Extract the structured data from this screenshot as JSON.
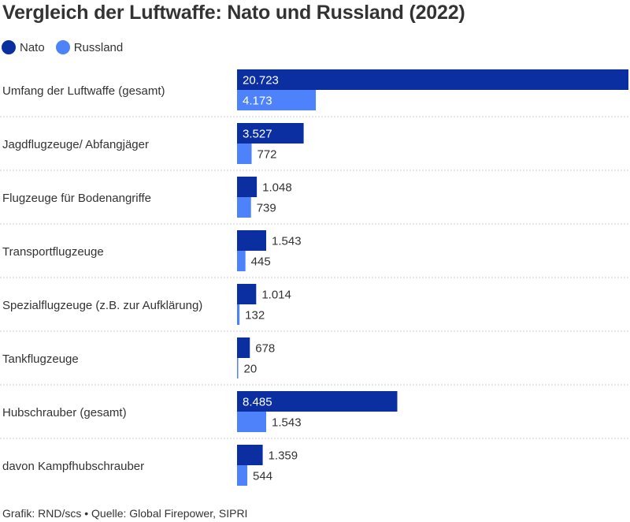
{
  "title": "Vergleich der Luftwaffe: Nato und Russland (2022)",
  "footer": "Grafik: RND/scs • Quelle: Global Firepower, SIPRI",
  "colors": {
    "nato": "#0b2fa0",
    "russland": "#4d82fa",
    "separator": "#cccccc",
    "text": "#333333",
    "label_inside": "#ffffff"
  },
  "legend": [
    {
      "name": "Nato",
      "color": "#0b2fa0"
    },
    {
      "name": "Russland",
      "color": "#4d82fa"
    }
  ],
  "chart_data": {
    "type": "bar",
    "orientation": "horizontal",
    "categories": [
      "Umfang der Luftwaffe (gesamt)",
      "Jagdflugzeuge/ Abfangjäger",
      "Flugzeuge für Bodenangriffe",
      "Transportflugzeuge",
      "Spezialflugzeuge (z.B. zur Aufklärung)",
      "Tankflugzeuge",
      "Hubschrauber (gesamt)",
      "davon Kampfhubschrauber"
    ],
    "series": [
      {
        "name": "Nato",
        "values": [
          20723,
          3527,
          1048,
          1543,
          1014,
          678,
          8485,
          1359
        ],
        "labels": [
          "20.723",
          "3.527",
          "1.048",
          "1.543",
          "1.014",
          "678",
          "8.485",
          "1.359"
        ]
      },
      {
        "name": "Russland",
        "values": [
          4173,
          772,
          739,
          445,
          132,
          20,
          1543,
          544
        ],
        "labels": [
          "4.173",
          "772",
          "739",
          "445",
          "132",
          "20",
          "1.543",
          "544"
        ]
      }
    ],
    "xlim": [
      0,
      20723
    ],
    "grid": false,
    "legend_position": "top-left"
  }
}
